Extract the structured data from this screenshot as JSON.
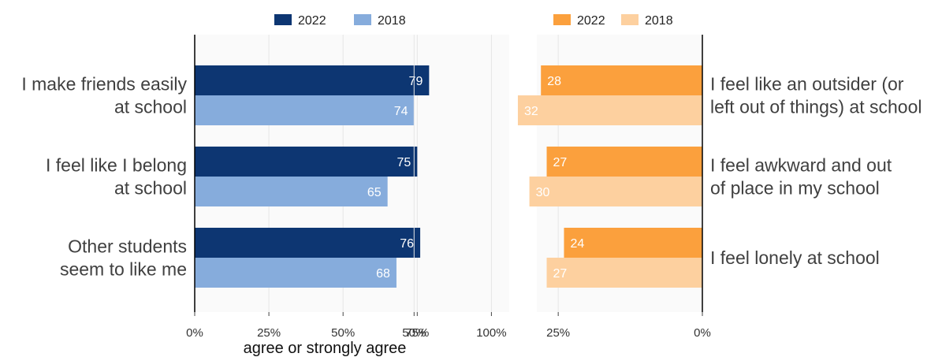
{
  "chart_data": [
    {
      "type": "bar",
      "orientation": "horizontal",
      "categories": [
        [
          "I make friends easily",
          "at school"
        ],
        [
          "I feel like I belong",
          "at school"
        ],
        [
          "Other students",
          "seem to like me"
        ]
      ],
      "series": [
        {
          "name": "2022",
          "color": "#0d3672",
          "label_color": "#ffffff",
          "values": [
            79,
            75,
            76
          ]
        },
        {
          "name": "2018",
          "color": "#86acdc",
          "label_color": "#ffffff",
          "values": [
            74,
            65,
            68
          ]
        }
      ],
      "xlim": [
        0,
        106
      ],
      "xticks": [
        0,
        25,
        50,
        75,
        100
      ],
      "xtick_labels": [
        "0%",
        "25%",
        "50%",
        "75%",
        "100%"
      ],
      "xlabel": "agree or strongly agree",
      "grid": true,
      "legend": "top"
    },
    {
      "type": "bar",
      "orientation": "horizontal",
      "reversed": true,
      "categories": [
        [
          "I feel like an outsider (or",
          "left out of things) at school"
        ],
        [
          "I feel awkward and out",
          "of place in my school"
        ],
        [
          "I feel lonely at school"
        ]
      ],
      "series": [
        {
          "name": "2022",
          "color": "#fba03d",
          "label_color": "#ffffff",
          "values": [
            28,
            27,
            24
          ]
        },
        {
          "name": "2018",
          "color": "#fdd09f",
          "label_color": "#ffffff",
          "values": [
            32,
            30,
            27
          ]
        }
      ],
      "xlim": [
        0,
        56
      ],
      "xticks": [
        50,
        25,
        0
      ],
      "xtick_labels": [
        "50%",
        "25%",
        "0%"
      ],
      "grid": true,
      "legend": "top"
    }
  ]
}
